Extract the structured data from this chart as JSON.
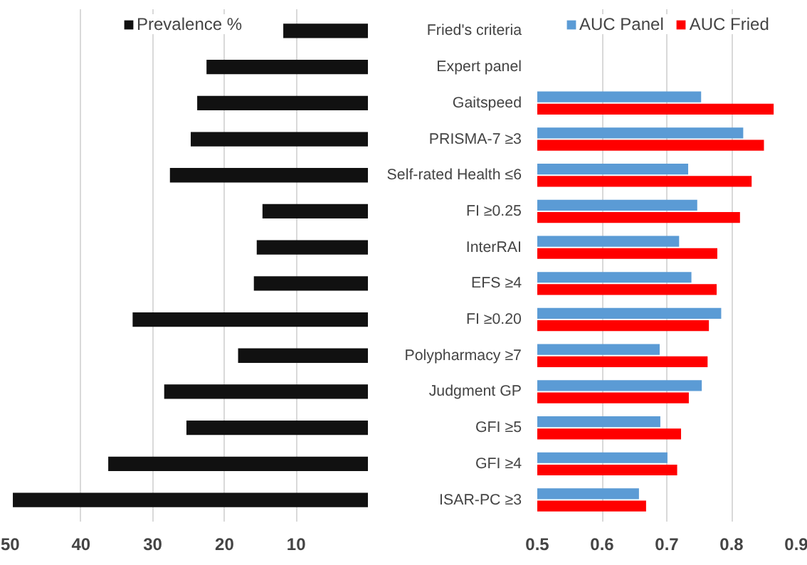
{
  "chart_data": [
    {
      "type": "bar",
      "orientation": "horizontal",
      "categories": [
        null,
        null,
        null,
        null,
        null,
        null,
        null,
        null,
        null,
        null,
        null,
        null,
        null,
        null
      ],
      "series": [
        {
          "name": "Prevalence %",
          "color": "#111111",
          "values": [
            11.8,
            22.5,
            23.8,
            24.7,
            27.6,
            14.7,
            15.5,
            15.9,
            32.8,
            18.1,
            28.4,
            25.3,
            36.2,
            49.5
          ]
        }
      ],
      "xlim": [
        50,
        0
      ],
      "xticks": [
        50,
        40,
        30,
        20,
        10
      ],
      "grid": "x",
      "legend": "top"
    },
    {
      "type": "bar",
      "orientation": "horizontal",
      "categories": [
        "Fried's criteria",
        "Expert panel",
        "Gaitspeed",
        "PRISMA-7 ≥3",
        "Self-rated Health ≤6",
        "FI ≥0.25",
        "InterRAI",
        "EFS ≥4",
        "FI ≥0.20",
        "Polypharmacy ≥7",
        "Judgment GP",
        "GFI ≥5",
        "GFI ≥4",
        "ISAR-PC ≥3"
      ],
      "series": [
        {
          "name": "AUC Panel",
          "color": "#5b9bd5",
          "values": [
            null,
            null,
            0.753,
            0.818,
            0.733,
            0.747,
            0.719,
            0.738,
            0.784,
            0.689,
            0.754,
            0.69,
            0.701,
            0.657
          ]
        },
        {
          "name": "AUC Fried",
          "color": "#ff0000",
          "values": [
            null,
            null,
            0.865,
            0.85,
            0.831,
            0.813,
            0.778,
            0.777,
            0.765,
            0.763,
            0.734,
            0.722,
            0.716,
            0.668
          ]
        }
      ],
      "xlim": [
        0.5,
        0.9
      ],
      "xticks": [
        0.5,
        0.6,
        0.7,
        0.8,
        0.9
      ],
      "grid": "x",
      "legend": "top"
    }
  ]
}
